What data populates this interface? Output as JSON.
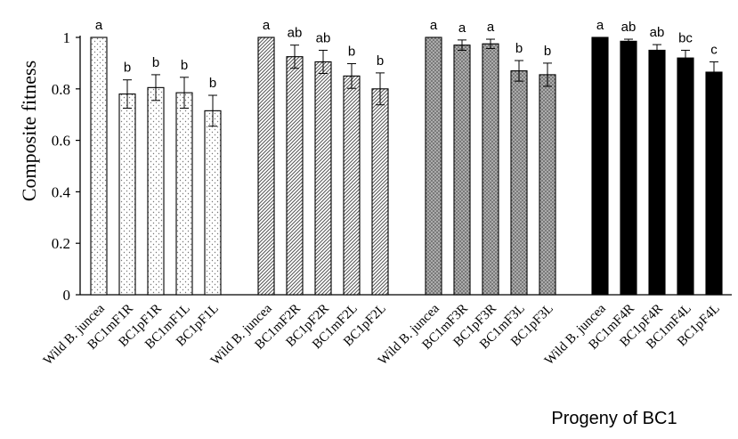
{
  "chart_data": {
    "type": "bar",
    "title": "",
    "ylabel": "Composite fitness",
    "xlabel": "Progeny of BC1",
    "ylim": [
      0,
      1
    ],
    "yticks": [
      "0",
      "0.2",
      "0.4",
      "0.6",
      "0.8",
      "1"
    ],
    "grid": false,
    "legend": "none",
    "groups": [
      {
        "pattern": "dots",
        "categories": [
          "Wild B. juncea",
          "BC1mF1R",
          "BC1pF1R",
          "BC1mF1L",
          "BC1pF1L"
        ],
        "values": [
          1.0,
          0.78,
          0.805,
          0.785,
          0.715
        ],
        "errors": [
          0,
          0.055,
          0.05,
          0.06,
          0.06
        ],
        "labels": [
          "a",
          "b",
          "b",
          "b",
          "b"
        ]
      },
      {
        "pattern": "diagonal",
        "categories": [
          "Wild B. juncea",
          "BC1mF2R",
          "BC1pF2R",
          "BC1mF2L",
          "BC1pF2L"
        ],
        "values": [
          1.0,
          0.925,
          0.905,
          0.85,
          0.8
        ],
        "errors": [
          0,
          0.045,
          0.045,
          0.048,
          0.062
        ],
        "labels": [
          "a",
          "ab",
          "ab",
          "b",
          "b"
        ]
      },
      {
        "pattern": "dense-dots",
        "categories": [
          "Wild B. juncea",
          "BC1mF3R",
          "BC1pF3R",
          "BC1mF3L",
          "BC1pF3L"
        ],
        "values": [
          1.0,
          0.97,
          0.975,
          0.87,
          0.855
        ],
        "errors": [
          0,
          0.02,
          0.018,
          0.04,
          0.045
        ],
        "labels": [
          "a",
          "a",
          "a",
          "b",
          "b"
        ]
      },
      {
        "pattern": "solid",
        "categories": [
          "Wild B. juncea",
          "BC1mF4R",
          "BC1pF4R",
          "BC1mF4L",
          "BC1pF4L"
        ],
        "values": [
          1.0,
          0.985,
          0.95,
          0.92,
          0.865
        ],
        "errors": [
          0,
          0.008,
          0.022,
          0.03,
          0.04
        ],
        "labels": [
          "a",
          "ab",
          "ab",
          "bc",
          "c"
        ]
      }
    ]
  },
  "colors": {
    "axis": "#000000",
    "solid": "#000000",
    "background": "#ffffff"
  }
}
